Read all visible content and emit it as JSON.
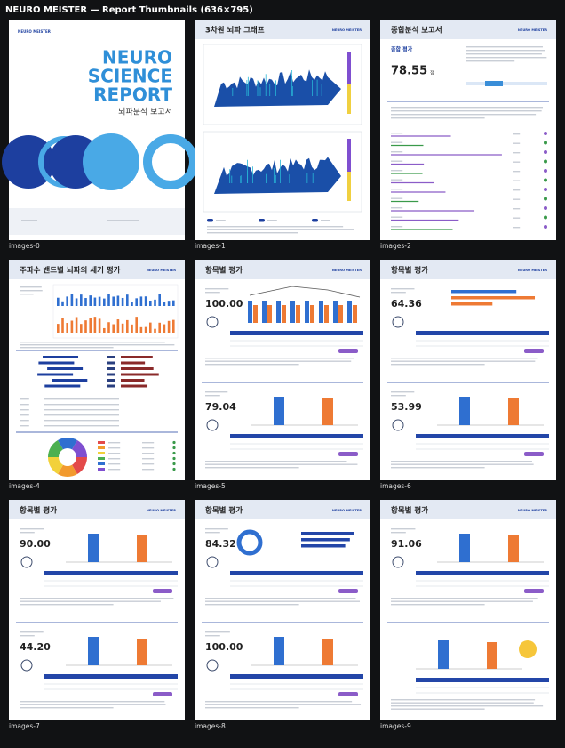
{
  "header": {
    "title": "NEURO MEISTER — Report Thumbnails (636×795)"
  },
  "logo": "NEURO MEISTER",
  "thumbnails": [
    {
      "caption": "images-0",
      "title_lines": [
        "NEURO",
        "SCIENCE",
        "REPORT"
      ],
      "subtitle": "뇌파분석 보고서"
    },
    {
      "caption": "images-1",
      "title": "3차원 뇌파 그래프"
    },
    {
      "caption": "images-2",
      "title": "종합분석 보고서",
      "section": "종합 평가",
      "score": "78.55",
      "unit": "점"
    },
    {
      "caption": "images-4",
      "title": "주파수 밴드별 뇌파의 세기 평가"
    },
    {
      "caption": "images-5",
      "title": "항목별 평가",
      "scores": [
        "100.00",
        "79.04"
      ]
    },
    {
      "caption": "images-6",
      "title": "항목별 평가",
      "scores": [
        "64.36",
        "53.99"
      ]
    },
    {
      "caption": "images-7",
      "title": "항목별 평가",
      "scores": [
        "90.00",
        "44.20"
      ]
    },
    {
      "caption": "images-8",
      "title": "항목별 평가",
      "scores": [
        "84.32",
        "100.00"
      ]
    },
    {
      "caption": "images-9",
      "title": "항목별 평가",
      "scores": [
        "91.06"
      ]
    }
  ]
}
